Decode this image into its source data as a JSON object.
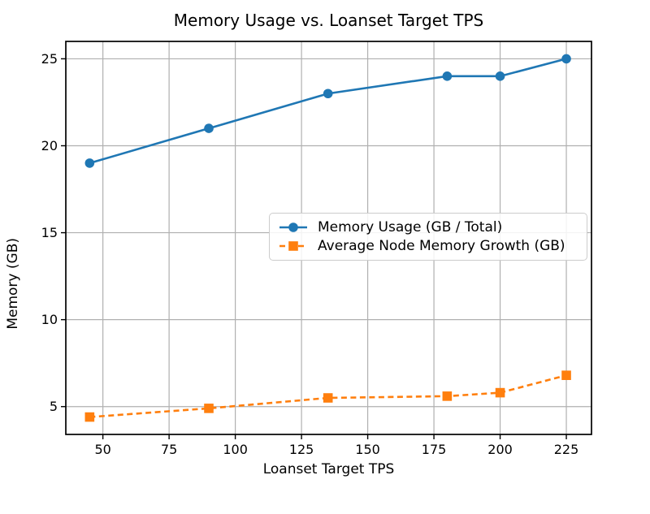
{
  "chart_data": {
    "type": "line",
    "title": "Memory Usage vs. Loanset Target TPS",
    "xlabel": "Loanset Target TPS",
    "ylabel": "Memory (GB)",
    "x": [
      45,
      90,
      135,
      180,
      200,
      225
    ],
    "series": [
      {
        "name": "Memory Usage (GB / Total)",
        "values": [
          19,
          21,
          23,
          24,
          24,
          25
        ],
        "color": "#1f77b4",
        "line_style": "solid",
        "marker": "circle"
      },
      {
        "name": "Average Node Memory Growth (GB)",
        "values": [
          4.4,
          4.9,
          5.5,
          5.6,
          5.8,
          6.8
        ],
        "color": "#ff7f0e",
        "line_style": "dashed",
        "marker": "square"
      }
    ],
    "xlim": [
      36,
      234.5
    ],
    "ylim": [
      3.4,
      26.0
    ],
    "xticks": [
      50,
      75,
      100,
      125,
      150,
      175,
      200,
      225
    ],
    "yticks": [
      5,
      10,
      15,
      20,
      25
    ],
    "grid": true,
    "grid_color": "#b0b0b0",
    "spine_color": "#000000",
    "background_color": "#ffffff",
    "legend_position": "center-right-inside"
  }
}
